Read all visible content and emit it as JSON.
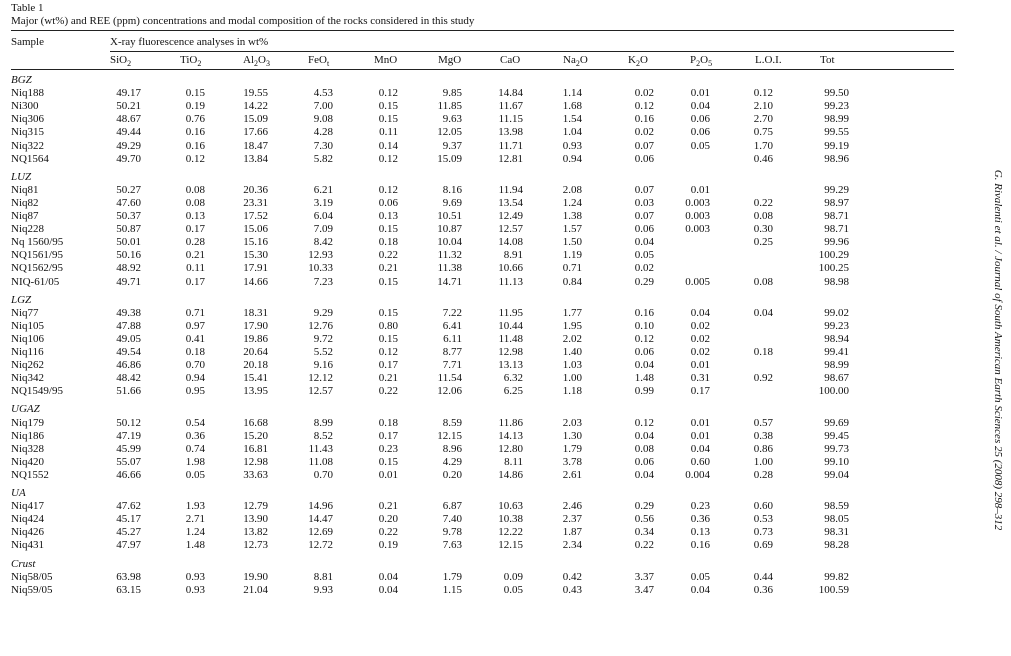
{
  "caption": {
    "title": "Table 1",
    "subtitle": "Major (wt%) and REE (ppm) concentrations and modal composition of the rocks considered in this study"
  },
  "side_note": "G. Rivalenti et al. / Journal of South American Earth Sciences 25 (2008) 298–312",
  "header": {
    "sample": "Sample",
    "spanner": "X-ray fluorescence analyses in wt%",
    "columns": [
      {
        "base": "SiO",
        "sub": "2"
      },
      {
        "base": "TiO",
        "sub": "2"
      },
      {
        "base": "Al",
        "sub": "2",
        "base2": "O",
        "sub2": "3"
      },
      {
        "base": "FeO",
        "sub": "t"
      },
      {
        "base": "MnO",
        "sub": ""
      },
      {
        "base": "MgO",
        "sub": ""
      },
      {
        "base": "CaO",
        "sub": ""
      },
      {
        "base": "Na",
        "sub": "2",
        "base2": "O",
        "sub2": ""
      },
      {
        "base": "K",
        "sub": "2",
        "base2": "O",
        "sub2": ""
      },
      {
        "base": "P",
        "sub": "2",
        "base2": "O",
        "sub2": "5"
      },
      {
        "base": "L.O.I.",
        "sub": ""
      },
      {
        "base": "Tot",
        "sub": ""
      }
    ]
  },
  "groups": [
    {
      "name": "BGZ",
      "rows": [
        {
          "sample": "Niq188",
          "values": [
            "49.17",
            "0.15",
            "19.55",
            "4.53",
            "0.12",
            "9.85",
            "14.84",
            "1.14",
            "0.02",
            "0.01",
            "0.12",
            "99.50"
          ]
        },
        {
          "sample": "Ni300",
          "values": [
            "50.21",
            "0.19",
            "14.22",
            "7.00",
            "0.15",
            "11.85",
            "11.67",
            "1.68",
            "0.12",
            "0.04",
            "2.10",
            "99.23"
          ]
        },
        {
          "sample": "Niq306",
          "values": [
            "48.67",
            "0.76",
            "15.09",
            "9.08",
            "0.15",
            "9.63",
            "11.15",
            "1.54",
            "0.16",
            "0.06",
            "2.70",
            "98.99"
          ]
        },
        {
          "sample": "Niq315",
          "values": [
            "49.44",
            "0.16",
            "17.66",
            "4.28",
            "0.11",
            "12.05",
            "13.98",
            "1.04",
            "0.02",
            "0.06",
            "0.75",
            "99.55"
          ]
        },
        {
          "sample": "Niq322",
          "values": [
            "49.29",
            "0.16",
            "18.47",
            "7.30",
            "0.14",
            "9.37",
            "11.71",
            "0.93",
            "0.07",
            "0.05",
            "1.70",
            "99.19"
          ]
        },
        {
          "sample": "NQ1564",
          "values": [
            "49.70",
            "0.12",
            "13.84",
            "5.82",
            "0.12",
            "15.09",
            "12.81",
            "0.94",
            "0.06",
            "",
            "0.46",
            "98.96"
          ]
        }
      ]
    },
    {
      "name": "LUZ",
      "rows": [
        {
          "sample": "Niq81",
          "values": [
            "50.27",
            "0.08",
            "20.36",
            "6.21",
            "0.12",
            "8.16",
            "11.94",
            "2.08",
            "0.07",
            "0.01",
            "",
            "99.29"
          ]
        },
        {
          "sample": "Niq82",
          "values": [
            "47.60",
            "0.08",
            "23.31",
            "3.19",
            "0.06",
            "9.69",
            "13.54",
            "1.24",
            "0.03",
            "0.003",
            "0.22",
            "98.97"
          ]
        },
        {
          "sample": "Niq87",
          "values": [
            "50.37",
            "0.13",
            "17.52",
            "6.04",
            "0.13",
            "10.51",
            "12.49",
            "1.38",
            "0.07",
            "0.003",
            "0.08",
            "98.71"
          ]
        },
        {
          "sample": "Niq228",
          "values": [
            "50.87",
            "0.17",
            "15.06",
            "7.09",
            "0.15",
            "10.87",
            "12.57",
            "1.57",
            "0.06",
            "0.003",
            "0.30",
            "98.71"
          ]
        },
        {
          "sample": "Nq 1560/95",
          "values": [
            "50.01",
            "0.28",
            "15.16",
            "8.42",
            "0.18",
            "10.04",
            "14.08",
            "1.50",
            "0.04",
            "",
            "0.25",
            "99.96"
          ]
        },
        {
          "sample": "NQ1561/95",
          "values": [
            "50.16",
            "0.21",
            "15.30",
            "12.93",
            "0.22",
            "11.32",
            "8.91",
            "1.19",
            "0.05",
            "",
            "",
            "100.29"
          ]
        },
        {
          "sample": "NQ1562/95",
          "values": [
            "48.92",
            "0.11",
            "17.91",
            "10.33",
            "0.21",
            "11.38",
            "10.66",
            "0.71",
            "0.02",
            "",
            "",
            "100.25"
          ]
        },
        {
          "sample": "NIQ-61/05",
          "values": [
            "49.71",
            "0.17",
            "14.66",
            "7.23",
            "0.15",
            "14.71",
            "11.13",
            "0.84",
            "0.29",
            "0.005",
            "0.08",
            "98.98"
          ]
        }
      ]
    },
    {
      "name": "LGZ",
      "rows": [
        {
          "sample": "Niq77",
          "values": [
            "49.38",
            "0.71",
            "18.31",
            "9.29",
            "0.15",
            "7.22",
            "11.95",
            "1.77",
            "0.16",
            "0.04",
            "0.04",
            "99.02"
          ]
        },
        {
          "sample": "Niq105",
          "values": [
            "47.88",
            "0.97",
            "17.90",
            "12.76",
            "0.80",
            "6.41",
            "10.44",
            "1.95",
            "0.10",
            "0.02",
            "",
            "99.23"
          ]
        },
        {
          "sample": "Niq106",
          "values": [
            "49.05",
            "0.41",
            "19.86",
            "9.72",
            "0.15",
            "6.11",
            "11.48",
            "2.02",
            "0.12",
            "0.02",
            "",
            "98.94"
          ]
        },
        {
          "sample": "Niq116",
          "values": [
            "49.54",
            "0.18",
            "20.64",
            "5.52",
            "0.12",
            "8.77",
            "12.98",
            "1.40",
            "0.06",
            "0.02",
            "0.18",
            "99.41"
          ]
        },
        {
          "sample": "Niq262",
          "values": [
            "46.86",
            "0.70",
            "20.18",
            "9.16",
            "0.17",
            "7.71",
            "13.13",
            "1.03",
            "0.04",
            "0.01",
            "",
            "98.99"
          ]
        },
        {
          "sample": "Niq342",
          "values": [
            "48.42",
            "0.94",
            "15.41",
            "12.12",
            "0.21",
            "11.54",
            "6.32",
            "1.00",
            "1.48",
            "0.31",
            "0.92",
            "98.67"
          ]
        },
        {
          "sample": "NQ1549/95",
          "values": [
            "51.66",
            "0.95",
            "13.95",
            "12.57",
            "0.22",
            "12.06",
            "6.25",
            "1.18",
            "0.99",
            "0.17",
            "",
            "100.00"
          ]
        }
      ]
    },
    {
      "name": "UGAZ",
      "rows": [
        {
          "sample": "Niq179",
          "values": [
            "50.12",
            "0.54",
            "16.68",
            "8.99",
            "0.18",
            "8.59",
            "11.86",
            "2.03",
            "0.12",
            "0.01",
            "0.57",
            "99.69"
          ]
        },
        {
          "sample": "Niq186",
          "values": [
            "47.19",
            "0.36",
            "15.20",
            "8.52",
            "0.17",
            "12.15",
            "14.13",
            "1.30",
            "0.04",
            "0.01",
            "0.38",
            "99.45"
          ]
        },
        {
          "sample": "Niq328",
          "values": [
            "45.99",
            "0.74",
            "16.81",
            "11.43",
            "0.23",
            "8.96",
            "12.80",
            "1.79",
            "0.08",
            "0.04",
            "0.86",
            "99.73"
          ]
        },
        {
          "sample": "Niq420",
          "values": [
            "55.07",
            "1.98",
            "12.98",
            "11.08",
            "0.15",
            "4.29",
            "8.11",
            "3.78",
            "0.06",
            "0.60",
            "1.00",
            "99.10"
          ]
        },
        {
          "sample": "NQ1552",
          "values": [
            "46.66",
            "0.05",
            "33.63",
            "0.70",
            "0.01",
            "0.20",
            "14.86",
            "2.61",
            "0.04",
            "0.004",
            "0.28",
            "99.04"
          ]
        }
      ]
    },
    {
      "name": "UA",
      "rows": [
        {
          "sample": "Niq417",
          "values": [
            "47.62",
            "1.93",
            "12.79",
            "14.96",
            "0.21",
            "6.87",
            "10.63",
            "2.46",
            "0.29",
            "0.23",
            "0.60",
            "98.59"
          ]
        },
        {
          "sample": "Niq424",
          "values": [
            "45.17",
            "2.71",
            "13.90",
            "14.47",
            "0.20",
            "7.40",
            "10.38",
            "2.37",
            "0.56",
            "0.36",
            "0.53",
            "98.05"
          ]
        },
        {
          "sample": "Niq426",
          "values": [
            "45.27",
            "1.24",
            "13.82",
            "12.69",
            "0.22",
            "9.78",
            "12.22",
            "1.87",
            "0.34",
            "0.13",
            "0.73",
            "98.31"
          ]
        },
        {
          "sample": "Niq431",
          "values": [
            "47.97",
            "1.48",
            "12.73",
            "12.72",
            "0.19",
            "7.63",
            "12.15",
            "2.34",
            "0.22",
            "0.16",
            "0.69",
            "98.28"
          ]
        }
      ]
    },
    {
      "name": "Crust",
      "rows": [
        {
          "sample": "Niq58/05",
          "values": [
            "63.98",
            "0.93",
            "19.90",
            "8.81",
            "0.04",
            "1.79",
            "0.09",
            "0.42",
            "3.37",
            "0.05",
            "0.44",
            "99.82"
          ]
        },
        {
          "sample": "Niq59/05",
          "values": [
            "63.15",
            "0.93",
            "21.04",
            "9.93",
            "0.04",
            "1.15",
            "0.05",
            "0.43",
            "3.47",
            "0.04",
            "0.36",
            "100.59"
          ]
        }
      ]
    }
  ]
}
